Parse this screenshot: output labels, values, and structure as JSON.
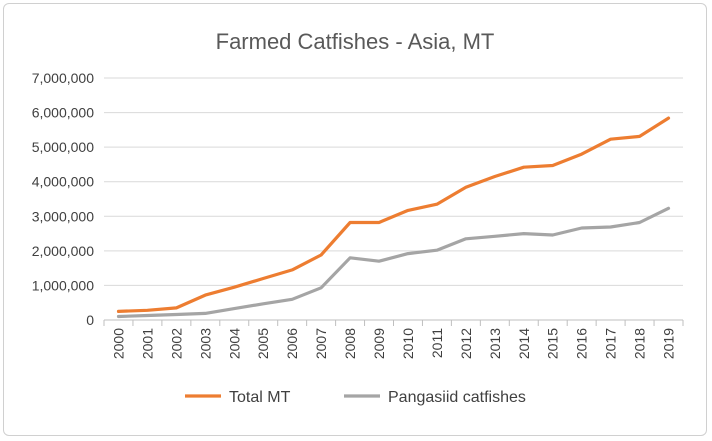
{
  "chart_data": {
    "type": "line",
    "title": "Farmed Catfishes - Asia, MT",
    "xlabel": "",
    "ylabel": "",
    "categories": [
      "2000",
      "2001",
      "2002",
      "2003",
      "2004",
      "2005",
      "2006",
      "2007",
      "2008",
      "2009",
      "2010",
      "2011",
      "2012",
      "2013",
      "2014",
      "2015",
      "2016",
      "2017",
      "2018",
      "2019"
    ],
    "ylim": [
      0,
      7000000
    ],
    "yticks": [
      "0",
      "1,000,000",
      "2,000,000",
      "3,000,000",
      "4,000,000",
      "5,000,000",
      "6,000,000",
      "7,000,000"
    ],
    "grid": true,
    "legend_position": "bottom",
    "series": [
      {
        "name": "Total MT",
        "color": "#ED7D31",
        "values": [
          250000,
          280000,
          350000,
          720000,
          950000,
          1200000,
          1450000,
          1880000,
          2820000,
          2820000,
          3170000,
          3350000,
          3840000,
          4150000,
          4420000,
          4470000,
          4800000,
          5230000,
          5310000,
          5840000
        ]
      },
      {
        "name": "Pangasiid catfishes",
        "color": "#A5A5A5",
        "values": [
          100000,
          130000,
          160000,
          190000,
          330000,
          470000,
          600000,
          930000,
          1800000,
          1700000,
          1920000,
          2020000,
          2350000,
          2420000,
          2500000,
          2460000,
          2660000,
          2690000,
          2820000,
          3230000
        ]
      }
    ]
  }
}
